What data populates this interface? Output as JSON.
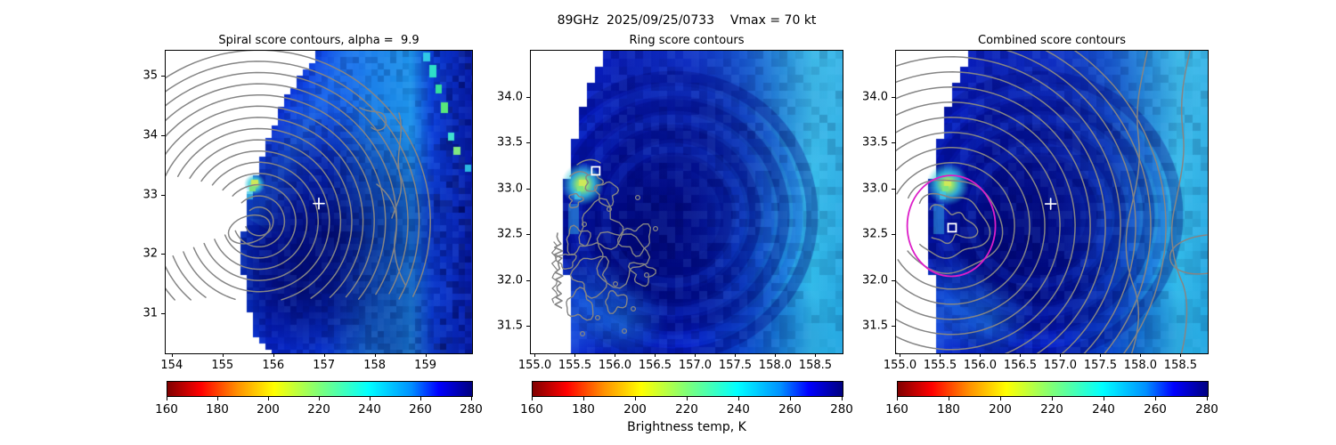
{
  "figure": {
    "suptitle": "89GHz  2025/09/25/0733    Vmax = 70 kt",
    "background": "#ffffff",
    "contour_color": "#858585",
    "colorbar": {
      "label": "Brightness temp, K",
      "orientation": "horizontal",
      "vmin": 160,
      "vmax": 280,
      "ticks": [
        "160",
        "180",
        "200",
        "220",
        "240",
        "260",
        "280"
      ],
      "colormap": "jet_r",
      "gradient": [
        {
          "p": 0.0,
          "c": "#800000"
        },
        {
          "p": 0.11,
          "c": "#ff0000"
        },
        {
          "p": 0.23,
          "c": "#ff9000"
        },
        {
          "p": 0.35,
          "c": "#ffff00"
        },
        {
          "p": 0.5,
          "c": "#7dff7a"
        },
        {
          "p": 0.66,
          "c": "#00ffff"
        },
        {
          "p": 0.8,
          "c": "#0090ff"
        },
        {
          "p": 0.89,
          "c": "#0000ff"
        },
        {
          "p": 1.0,
          "c": "#000080"
        }
      ]
    }
  },
  "chart_data": [
    {
      "type": "heatmap",
      "title": "Spiral score contours, alpha =  9.9",
      "value_label": "Brightness temp, K",
      "x_range": [
        153.88,
        159.92
      ],
      "y_range": [
        30.33,
        35.42
      ],
      "x_ticks": [
        154,
        155,
        156,
        157,
        158,
        159
      ],
      "x_tick_labels": [
        "154",
        "155",
        "156",
        "157",
        "158",
        "159"
      ],
      "y_ticks": [
        35,
        34,
        33,
        32,
        31
      ],
      "y_tick_labels": [
        "35",
        "34",
        "33",
        "32",
        "31"
      ],
      "grid": false,
      "overlays": {
        "contours": {
          "kind": "spiral-score",
          "color": "#858585",
          "center_lon": 155.72,
          "center_lat": 32.55,
          "n_levels": 15
        },
        "markers": [
          {
            "shape": "plus",
            "color": "#ffffff",
            "lon": 156.9,
            "lat": 32.85
          }
        ],
        "bright_cell": {
          "lon": 155.66,
          "lat": 33.18
        },
        "swath_edge": "no-data white arc on west side"
      }
    },
    {
      "type": "heatmap",
      "title": "Ring score contours",
      "value_label": "Brightness temp, K",
      "x_range": [
        154.95,
        158.84
      ],
      "y_range": [
        31.2,
        34.5
      ],
      "x_ticks": [
        155.0,
        155.5,
        156.0,
        156.5,
        157.0,
        157.5,
        158.0,
        158.5
      ],
      "x_tick_labels": [
        "155.0",
        "155.5",
        "156.0",
        "156.5",
        "157.0",
        "157.5",
        "158.0",
        "158.5"
      ],
      "y_ticks": [
        34.0,
        33.5,
        33.0,
        32.5,
        32.0,
        31.5
      ],
      "y_tick_labels": [
        "34.0",
        "33.5",
        "33.0",
        "32.5",
        "32.0",
        "31.5"
      ],
      "grid": false,
      "overlays": {
        "contours": {
          "kind": "ring-score",
          "color": "#858585",
          "extent_lon": [
            155.2,
            156.6
          ],
          "extent_lat": [
            31.9,
            33.35
          ]
        },
        "markers": [
          {
            "shape": "square",
            "color": "#ffffff",
            "lon": 155.76,
            "lat": 33.19
          }
        ],
        "bright_cell": {
          "lon": 155.63,
          "lat": 33.12
        },
        "swath_edge": "no-data white wedge on west side"
      }
    },
    {
      "type": "heatmap",
      "title": "Combined score contours",
      "value_label": "Brightness temp, K",
      "x_range": [
        154.95,
        158.84
      ],
      "y_range": [
        31.2,
        34.5
      ],
      "x_ticks": [
        155.0,
        155.5,
        156.0,
        156.5,
        157.0,
        157.5,
        158.0,
        158.5
      ],
      "x_tick_labels": [
        "155.0",
        "155.5",
        "156.0",
        "156.5",
        "157.0",
        "157.5",
        "158.0",
        "158.5"
      ],
      "y_ticks": [
        34.0,
        33.5,
        33.0,
        32.5,
        32.0,
        31.5
      ],
      "y_tick_labels": [
        "34.0",
        "33.5",
        "33.0",
        "32.5",
        "32.0",
        "31.5"
      ],
      "grid": false,
      "overlays": {
        "contours": {
          "kind": "combined-score",
          "color": "#858585",
          "center_lon": 155.64,
          "center_lat": 32.59,
          "n_levels": 14
        },
        "circle": {
          "color": "#dc1ec8",
          "center_lon": 155.64,
          "center_lat": 32.59,
          "radius_deg": 0.55
        },
        "markers": [
          {
            "shape": "plus",
            "color": "#ffffff",
            "lon": 156.88,
            "lat": 32.83
          },
          {
            "shape": "square",
            "color": "#ffffff",
            "lon": 155.65,
            "lat": 32.57
          }
        ],
        "bright_cell": {
          "lon": 155.63,
          "lat": 33.12
        },
        "swath_edge": "no-data white wedge on west side"
      }
    }
  ]
}
